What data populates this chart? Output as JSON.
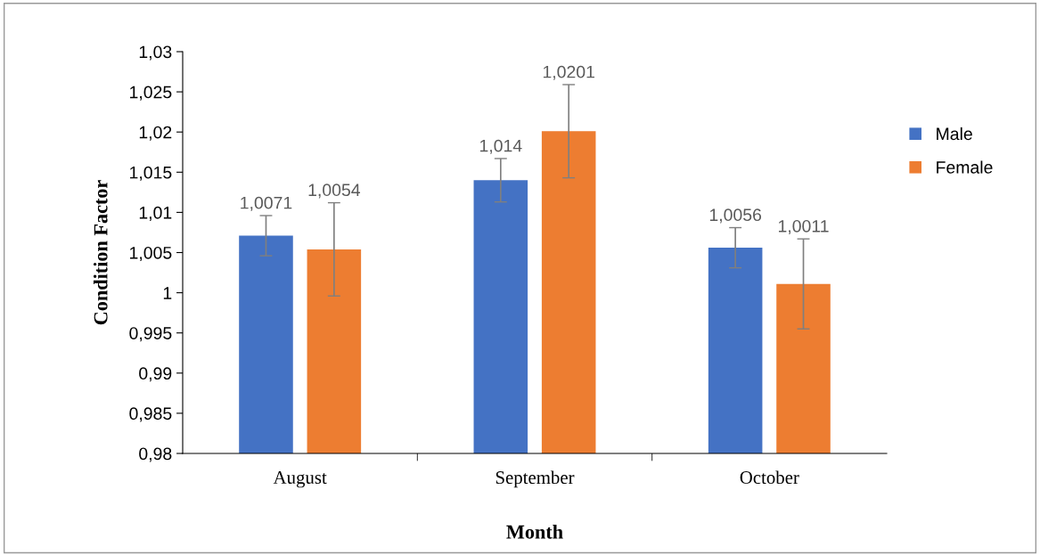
{
  "chart_data": {
    "type": "bar",
    "xlabel": "Month",
    "ylabel": "Condition Factor",
    "categories": [
      "August",
      "September",
      "October"
    ],
    "series": [
      {
        "name": "Male",
        "color": "#4472c4",
        "values": [
          1.0071,
          1.014,
          1.0056
        ],
        "errors": [
          0.0025,
          0.0027,
          0.0025
        ],
        "value_labels": [
          "1,0071",
          "1,014",
          "1,0056"
        ]
      },
      {
        "name": "Female",
        "color": "#ed7d31",
        "values": [
          1.0054,
          1.0201,
          1.0011
        ],
        "errors": [
          0.0058,
          0.0058,
          0.0056
        ],
        "value_labels": [
          "1,0054",
          "1,0201",
          "1,0011"
        ]
      }
    ],
    "ylim": [
      0.98,
      1.03
    ],
    "yticks": [
      {
        "value": 0.98,
        "label": "0,98"
      },
      {
        "value": 0.985,
        "label": "0,985"
      },
      {
        "value": 0.99,
        "label": "0,99"
      },
      {
        "value": 0.995,
        "label": "0,995"
      },
      {
        "value": 1,
        "label": "1"
      },
      {
        "value": 1.005,
        "label": "1,005"
      },
      {
        "value": 1.01,
        "label": "1,01"
      },
      {
        "value": 1.015,
        "label": "1,015"
      },
      {
        "value": 1.02,
        "label": "1,02"
      },
      {
        "value": 1.025,
        "label": "1,025"
      },
      {
        "value": 1.03,
        "label": "1,03"
      }
    ],
    "grid": false,
    "legend": "right"
  }
}
